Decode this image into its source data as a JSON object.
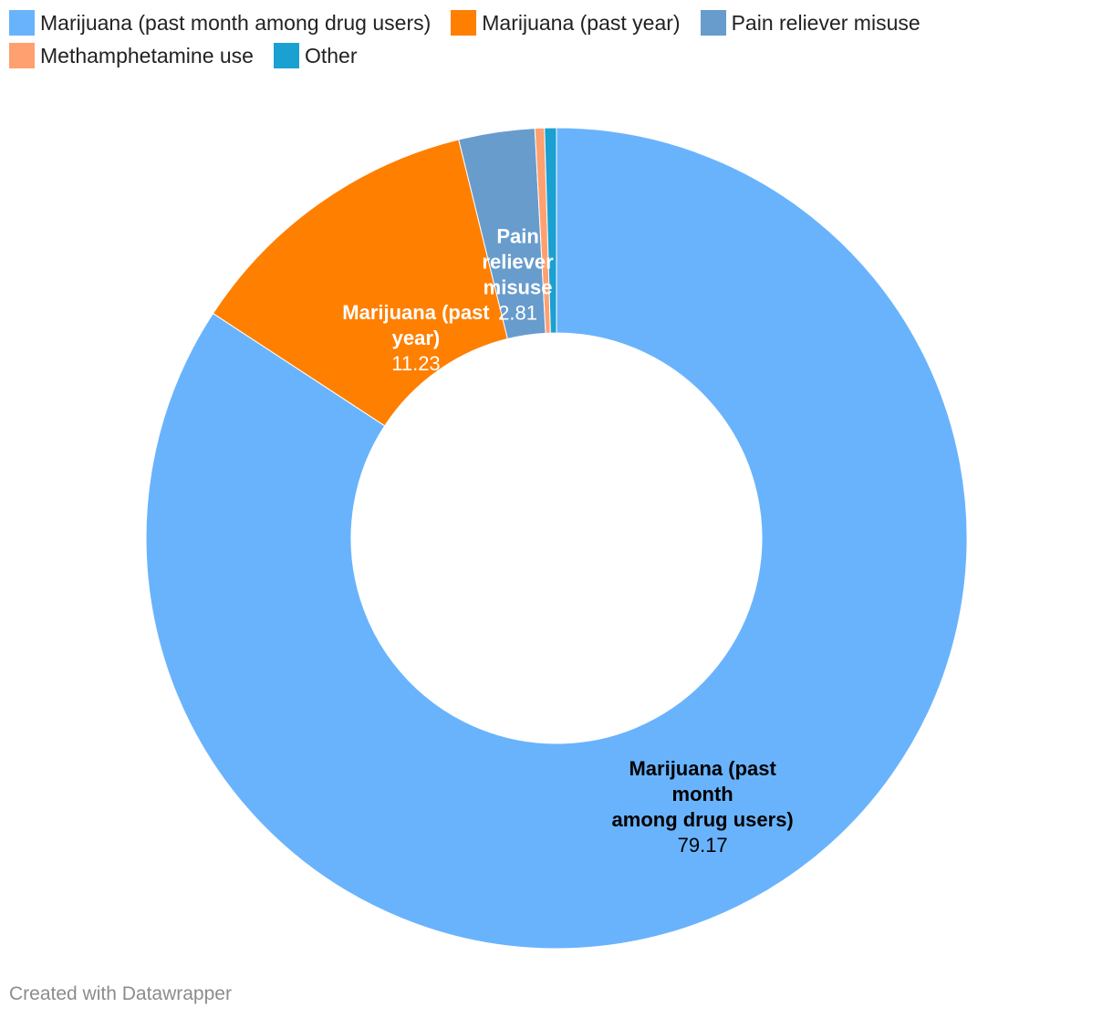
{
  "chart_data": {
    "type": "pie",
    "donut": true,
    "series": [
      {
        "name": "Marijuana (past month among drug users)",
        "value": 79.17,
        "color": "#69b3fd",
        "label_lines": [
          "Marijuana (past",
          "month",
          "among drug users)"
        ],
        "value_label": "79.17",
        "label_color": "#000000"
      },
      {
        "name": "Marijuana (past year)",
        "value": 11.23,
        "color": "#ff7f00",
        "label_lines": [
          "Marijuana (past",
          "year)"
        ],
        "value_label": "11.23",
        "label_color": "#ffffff"
      },
      {
        "name": "Pain reliever misuse",
        "value": 2.81,
        "color": "#679ccd",
        "label_lines": [
          "Pain",
          "reliever",
          "misuse"
        ],
        "value_label": "2.81",
        "label_color": "#ffffff"
      },
      {
        "name": "Methamphetamine use",
        "value": 0.35,
        "color": "#ffa070",
        "label_lines": [],
        "value_label": "",
        "label_color": "#ffffff"
      },
      {
        "name": "Other",
        "value": 0.44,
        "color": "#1aa0d1",
        "label_lines": [],
        "value_label": "",
        "label_color": "#ffffff"
      }
    ],
    "legend_position": "top-left"
  },
  "footer": {
    "credit": "Created with Datawrapper"
  }
}
